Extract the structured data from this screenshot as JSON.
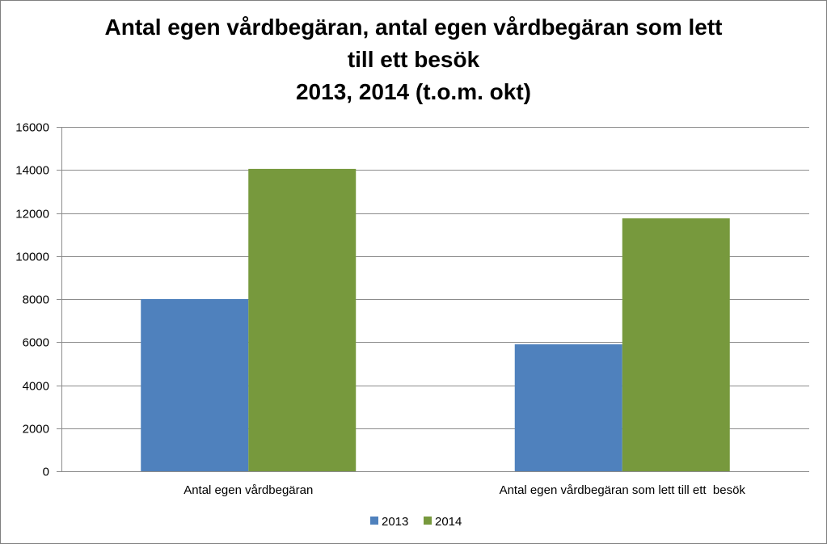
{
  "chart_data": {
    "type": "bar",
    "title_lines": [
      "Antal egen vårdbegäran, antal egen vårdbegäran som lett",
      "till ett besök",
      "2013, 2014 (t.o.m. okt)"
    ],
    "categories": [
      "Antal egen vårdbegäran",
      "Antal egen vårdbegäran som lett till ett  besök"
    ],
    "series": [
      {
        "name": "2013",
        "values": [
          8000,
          5900
        ],
        "color": "#4F81BD"
      },
      {
        "name": "2014",
        "values": [
          14050,
          11750
        ],
        "color": "#77993D"
      }
    ],
    "ylim": [
      0,
      16000
    ],
    "yticks": [
      0,
      2000,
      4000,
      6000,
      8000,
      10000,
      12000,
      14000,
      16000
    ],
    "grid": true,
    "legend_position": "bottom"
  }
}
